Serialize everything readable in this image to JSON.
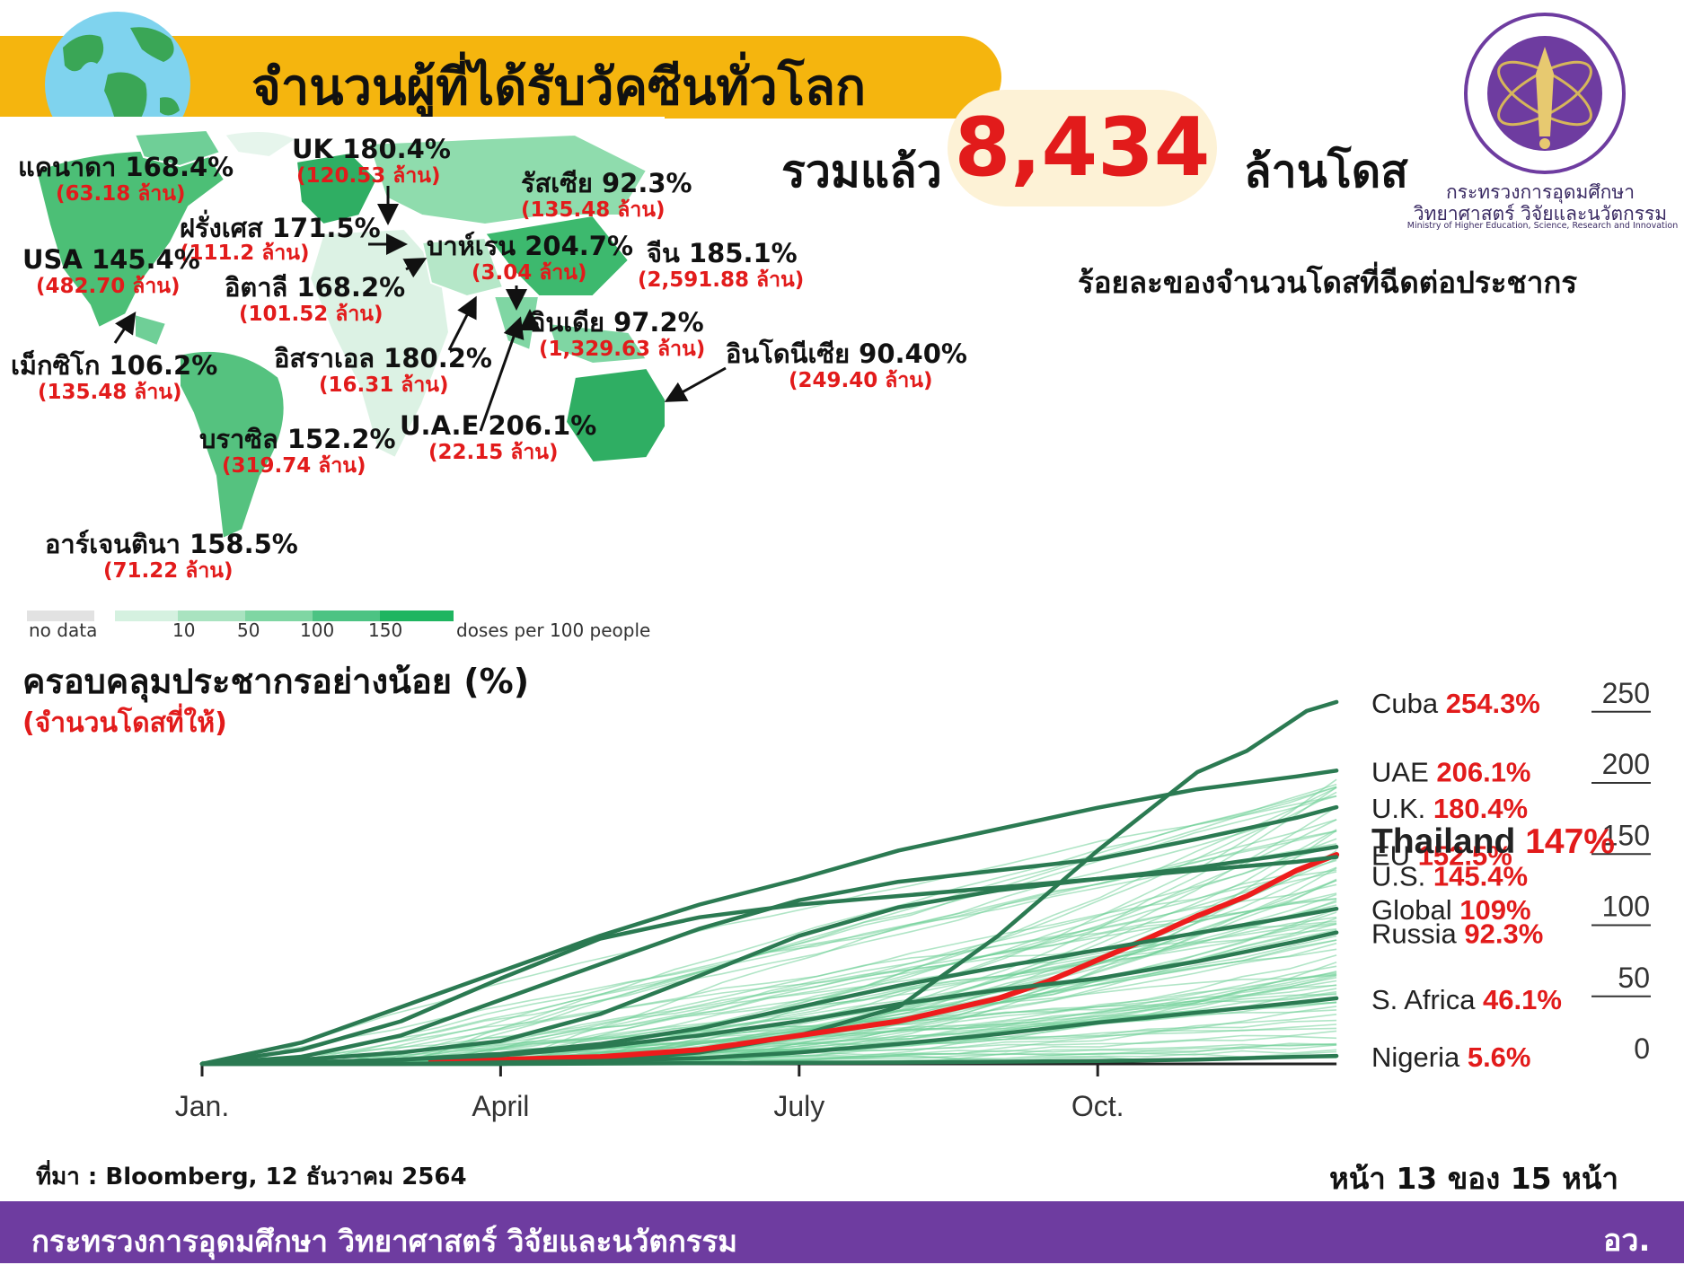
{
  "header": {
    "title": "จำนวนผู้ที่ได้รับวัคซีนทั่วโลก",
    "total_prefix": "รวมแล้ว",
    "total_value": "8,434",
    "total_unit": "ล้านโดส"
  },
  "logo": {
    "name_th": "กระทรวงการอุดมศึกษา วิทยาศาสตร์ วิจัยและนวัตกรรม",
    "name_en": "Ministry of Higher Education, Science, Research and Innovation"
  },
  "map": {
    "labels": [
      {
        "name": "แคนาดา 168.4%",
        "value": "(63.18 ล้าน)"
      },
      {
        "name": "UK 180.4%",
        "value": "(120.53 ล้าน)"
      },
      {
        "name": "รัสเซีย 92.3%",
        "value": "(135.48 ล้าน)"
      },
      {
        "name": "ฝรั่งเศส 171.5%",
        "value": "(111.2 ล้าน)"
      },
      {
        "name": "USA 145.4%",
        "value": "(482.70 ล้าน)"
      },
      {
        "name": "อิตาลี 168.2%",
        "value": "(101.52 ล้าน)"
      },
      {
        "name": "บาห์เรน 204.7%",
        "value": "(3.04 ล้าน)"
      },
      {
        "name": "จีน 185.1%",
        "value": "(2,591.88 ล้าน)"
      },
      {
        "name": "อินเดีย 97.2%",
        "value": "(1,329.63 ล้าน)"
      },
      {
        "name": "อิสราเอล 180.2%",
        "value": "(16.31 ล้าน)"
      },
      {
        "name": "อินโดนีเซีย 90.40%",
        "value": "(249.40 ล้าน)"
      },
      {
        "name": "เม็กซิโก 106.2%",
        "value": "(135.48 ล้าน)"
      },
      {
        "name": "U.A.E 206.1%",
        "value": "(22.15 ล้าน)"
      },
      {
        "name": "บราซิล 152.2%",
        "value": "(319.74 ล้าน)"
      },
      {
        "name": "อาร์เจนตินา 158.5%",
        "value": "(71.22 ล้าน)"
      }
    ],
    "legend": {
      "no_data": "no data",
      "ticks": [
        "10",
        "50",
        "100",
        "150"
      ],
      "caption": "doses per 100 people"
    }
  },
  "coverage": {
    "title": "ครอบคลุมประชากรอย่างน้อย (%)",
    "subtitle": "(จำนวนโดสที่ให้)"
  },
  "colors": {
    "header_bar": "#f5b50e",
    "highlight_red": "#e21b1b",
    "footer_purple": "#6e3ca0",
    "dark_green": "#2b7a52",
    "light_green": "#6fcf97",
    "thailand_line": "#ee1c1c"
  },
  "chart_data": {
    "type": "line",
    "title": "ร้อยละของจำนวนโดสที่ฉีดต่อประชากร",
    "x_tick_labels": [
      "Jan.",
      "April",
      "July",
      "Oct."
    ],
    "x_tick_months": [
      0,
      3,
      6,
      9
    ],
    "x_range_months": [
      0,
      11.4
    ],
    "y_ticks": [
      0,
      50,
      100,
      150,
      200,
      250
    ],
    "ylim": [
      0,
      258
    ],
    "series": [
      {
        "name": "Cuba",
        "label": "254.3%",
        "x": [
          0,
          3,
          4,
          5,
          6,
          7,
          8,
          9,
          10,
          10.5,
          11.1,
          11.4
        ],
        "values": [
          0,
          0,
          2,
          8,
          20,
          40,
          90,
          150,
          205,
          220,
          248,
          254.3
        ]
      },
      {
        "name": "UAE",
        "label": "206.1%",
        "x": [
          0,
          1,
          2,
          3,
          4,
          5,
          6,
          7,
          8,
          9,
          10,
          11,
          11.4
        ],
        "values": [
          0,
          15,
          40,
          65,
          90,
          112,
          130,
          150,
          165,
          180,
          193,
          202,
          206.1
        ]
      },
      {
        "name": "U.K.",
        "label": "180.4%",
        "x": [
          0,
          1,
          2,
          3,
          4,
          5,
          6,
          7,
          8,
          9,
          10,
          11,
          11.4
        ],
        "values": [
          0,
          5,
          20,
          45,
          70,
          95,
          115,
          128,
          136,
          144,
          158,
          173,
          180.4
        ]
      },
      {
        "name": "EU",
        "label": "152.5%",
        "x": [
          0,
          1,
          2,
          3,
          4,
          5,
          6,
          7,
          8,
          9,
          10,
          11,
          11.4
        ],
        "values": [
          0,
          3,
          8,
          16,
          35,
          62,
          90,
          110,
          122,
          130,
          138,
          148,
          152.5
        ]
      },
      {
        "name": "Thailand",
        "label": "147%",
        "x": [
          2.3,
          3,
          4,
          5,
          6,
          7,
          8,
          8.5,
          9,
          9.5,
          10,
          10.5,
          11,
          11.4
        ],
        "values": [
          2,
          3,
          5,
          10,
          20,
          30,
          46,
          58,
          73,
          88,
          104,
          118,
          136,
          147
        ]
      },
      {
        "name": "U.S.",
        "label": "145.4%",
        "x": [
          0,
          1,
          2,
          3,
          4,
          5,
          6,
          7,
          8,
          9,
          10,
          11,
          11.4
        ],
        "values": [
          0,
          10,
          30,
          60,
          88,
          103,
          112,
          118,
          124,
          130,
          136,
          142,
          145.4
        ]
      },
      {
        "name": "Global",
        "label": "109%",
        "x": [
          0,
          1,
          2,
          3,
          4,
          5,
          6,
          7,
          8,
          9,
          10,
          11,
          11.4
        ],
        "values": [
          0,
          1,
          3,
          7,
          14,
          25,
          40,
          55,
          68,
          80,
          92,
          104,
          109
        ]
      },
      {
        "name": "Russia",
        "label": "92.3%",
        "x": [
          0,
          1,
          2,
          3,
          4,
          5,
          6,
          7,
          8,
          9,
          10,
          11,
          11.4
        ],
        "values": [
          0,
          1,
          3,
          6,
          12,
          20,
          30,
          42,
          52,
          60,
          72,
          86,
          92.3
        ]
      },
      {
        "name": "S. Africa",
        "label": "46.1%",
        "x": [
          0,
          2,
          3,
          4,
          5,
          6,
          7,
          8,
          9,
          10,
          11,
          11.4
        ],
        "values": [
          0,
          0,
          1,
          2,
          4,
          8,
          14,
          21,
          29,
          36,
          43,
          46.1
        ]
      },
      {
        "name": "Nigeria",
        "label": "5.6%",
        "x": [
          0,
          3,
          5,
          7,
          9,
          10,
          11,
          11.4
        ],
        "values": [
          0,
          0,
          0.5,
          1,
          2,
          3,
          5,
          5.6
        ]
      }
    ]
  },
  "footer": {
    "source": "ที่มา : Bloomberg, 12 ธันวาคม 2564",
    "page": "หน้า 13 ของ 15 หน้า",
    "ministry": "กระทรวงการอุดมศึกษา วิทยาศาสตร์ วิจัยและนวัตกรรม",
    "abbr": "อว."
  }
}
